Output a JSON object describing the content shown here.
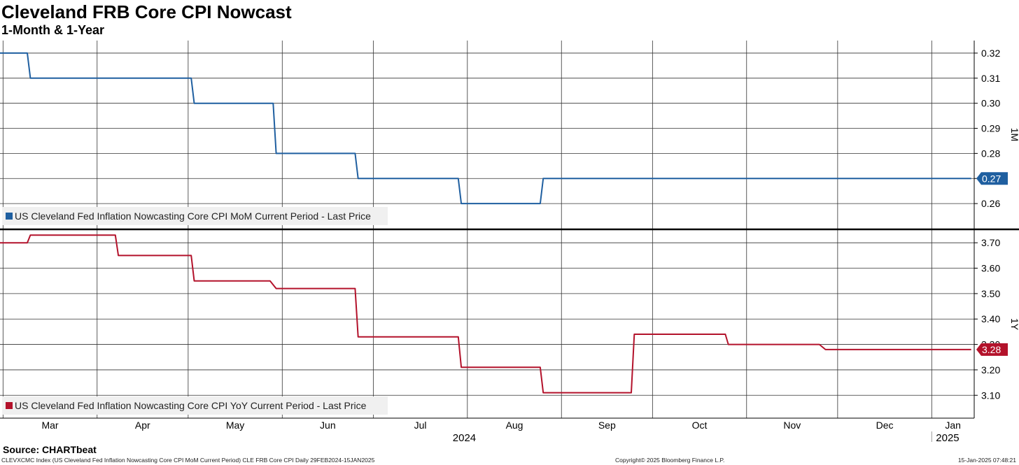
{
  "title": "Cleveland FRB Core CPI Nowcast",
  "subtitle": "1-Month & 1-Year",
  "source": "Source: CHARTbeat",
  "footer": {
    "left": "CLEVXCMC Index (US Cleveland Fed Inflation Nowcasting Core CPI MoM Current Period) CLE FRB Core CPI  Daily 29FEB2024-15JAN2025",
    "center": "Copyright© 2025 Bloomberg Finance L.P.",
    "right": "15-Jan-2025 07:48:21"
  },
  "chart_data": {
    "type": "line",
    "x_axis": {
      "months": [
        {
          "label": "Mar",
          "date": "2024-03-01"
        },
        {
          "label": "Apr",
          "date": "2024-04-01"
        },
        {
          "label": "May",
          "date": "2024-05-01"
        },
        {
          "label": "Jun",
          "date": "2024-06-01"
        },
        {
          "label": "Jul",
          "date": "2024-07-01"
        },
        {
          "label": "Aug",
          "date": "2024-08-01"
        },
        {
          "label": "Sep",
          "date": "2024-09-01"
        },
        {
          "label": "Oct",
          "date": "2024-10-01"
        },
        {
          "label": "Nov",
          "date": "2024-11-01"
        },
        {
          "label": "Dec",
          "date": "2024-12-01"
        },
        {
          "label": "Jan",
          "date": "2025-01-01"
        }
      ],
      "years": [
        {
          "label": "2024",
          "date": "2024-07-31"
        },
        {
          "label": "2025",
          "date": "2025-01-01"
        }
      ],
      "range": [
        "2024-02-29",
        "2025-01-15"
      ]
    },
    "panels": [
      {
        "axis_label": "1M",
        "ylim": [
          0.25,
          0.325
        ],
        "ticks": [
          "0.26",
          "0.27",
          "0.28",
          "0.29",
          "0.30",
          "0.31",
          "0.32"
        ],
        "grid": true,
        "legend_position": "bottom-left",
        "series": {
          "name": "US Cleveland Fed Inflation Nowcasting Core CPI MoM Current Period - Last Price",
          "color": "#1f5fa0",
          "last_value": "0.27",
          "points": [
            {
              "x": "2024-02-29",
              "y": 0.32
            },
            {
              "x": "2024-03-09",
              "y": 0.32
            },
            {
              "x": "2024-03-10",
              "y": 0.31
            },
            {
              "x": "2024-05-02",
              "y": 0.31
            },
            {
              "x": "2024-05-03",
              "y": 0.3
            },
            {
              "x": "2024-05-29",
              "y": 0.3
            },
            {
              "x": "2024-05-30",
              "y": 0.28
            },
            {
              "x": "2024-06-25",
              "y": 0.28
            },
            {
              "x": "2024-06-26",
              "y": 0.27
            },
            {
              "x": "2024-07-29",
              "y": 0.27
            },
            {
              "x": "2024-07-30",
              "y": 0.26
            },
            {
              "x": "2024-08-25",
              "y": 0.26
            },
            {
              "x": "2024-08-26",
              "y": 0.27
            },
            {
              "x": "2025-01-14",
              "y": 0.27
            }
          ]
        }
      },
      {
        "axis_label": "1Y",
        "ylim": [
          3.01,
          3.75
        ],
        "ticks": [
          "3.10",
          "3.20",
          "3.30",
          "3.40",
          "3.50",
          "3.60",
          "3.70"
        ],
        "grid": true,
        "legend_position": "bottom-left",
        "series": {
          "name": "US Cleveland Fed Inflation Nowcasting Core CPI YoY Current Period - Last Price",
          "color": "#b3122b",
          "last_value": "3.28",
          "points": [
            {
              "x": "2024-02-29",
              "y": 3.7
            },
            {
              "x": "2024-03-09",
              "y": 3.7
            },
            {
              "x": "2024-03-10",
              "y": 3.73
            },
            {
              "x": "2024-04-07",
              "y": 3.73
            },
            {
              "x": "2024-04-08",
              "y": 3.65
            },
            {
              "x": "2024-05-02",
              "y": 3.65
            },
            {
              "x": "2024-05-03",
              "y": 3.55
            },
            {
              "x": "2024-05-28",
              "y": 3.55
            },
            {
              "x": "2024-05-30",
              "y": 3.52
            },
            {
              "x": "2024-06-25",
              "y": 3.52
            },
            {
              "x": "2024-06-26",
              "y": 3.33
            },
            {
              "x": "2024-07-29",
              "y": 3.33
            },
            {
              "x": "2024-07-30",
              "y": 3.21
            },
            {
              "x": "2024-08-25",
              "y": 3.21
            },
            {
              "x": "2024-08-26",
              "y": 3.11
            },
            {
              "x": "2024-09-24",
              "y": 3.11
            },
            {
              "x": "2024-09-25",
              "y": 3.34
            },
            {
              "x": "2024-10-25",
              "y": 3.34
            },
            {
              "x": "2024-10-26",
              "y": 3.3
            },
            {
              "x": "2024-11-25",
              "y": 3.3
            },
            {
              "x": "2024-11-27",
              "y": 3.28
            },
            {
              "x": "2025-01-14",
              "y": 3.28
            }
          ]
        }
      }
    ]
  }
}
